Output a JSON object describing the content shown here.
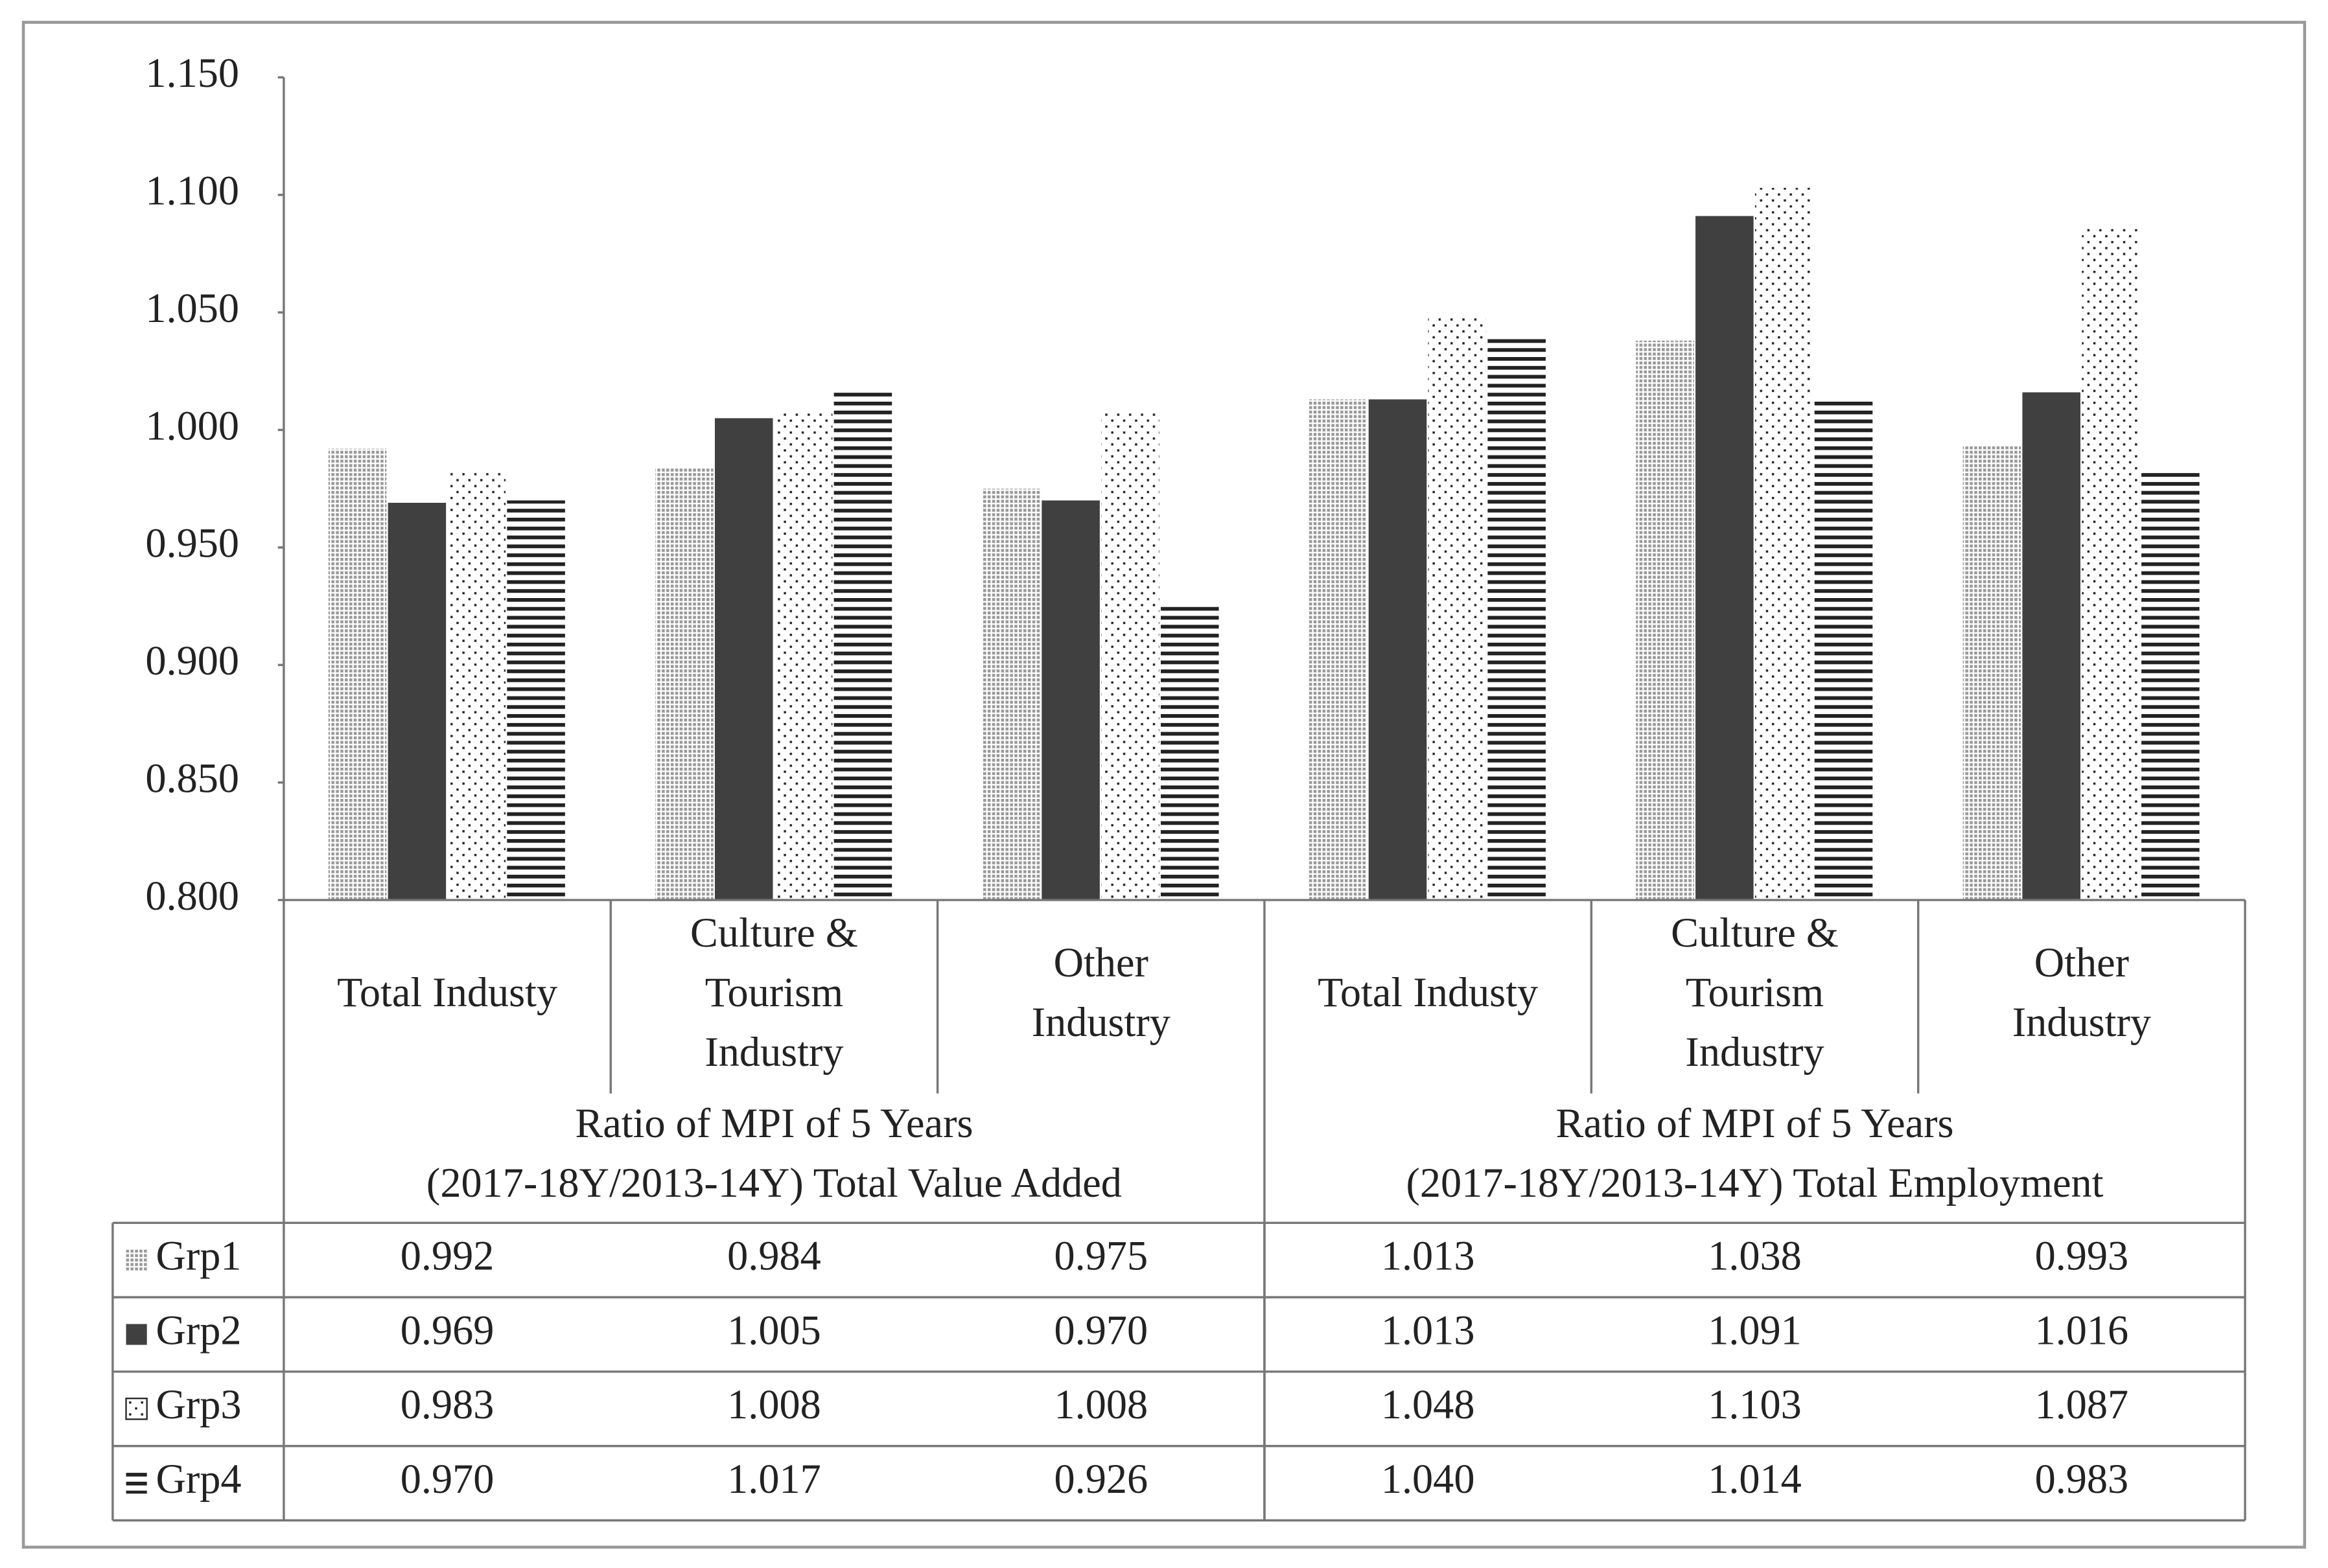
{
  "chart_data": {
    "type": "bar",
    "categories": [
      [
        "Total Industy"
      ],
      [
        "Culture &",
        "Tourism",
        "Industry"
      ],
      [
        "Other",
        "Industry"
      ],
      [
        "Total Industy"
      ],
      [
        "Culture &",
        "Tourism",
        "Industry"
      ],
      [
        "Other",
        "Industry"
      ]
    ],
    "groups": [
      [
        "Ratio of MPI of 5 Years",
        "(2017-18Y/2013-14Y) Total Value Added"
      ],
      [
        "Ratio of MPI of 5 Years",
        "(2017-18Y/2013-14Y) Total Employment"
      ]
    ],
    "series": [
      {
        "name": "Grp1",
        "color": "#999999",
        "pattern": "dense-dots",
        "values": [
          0.992,
          0.984,
          0.975,
          1.013,
          1.038,
          0.993
        ],
        "value_labels": [
          "0.992",
          "0.984",
          "0.975",
          "1.013",
          "1.038",
          "0.993"
        ]
      },
      {
        "name": "Grp2",
        "color": "#404040",
        "pattern": "solid",
        "values": [
          0.969,
          1.005,
          0.97,
          1.013,
          1.091,
          1.016
        ],
        "value_labels": [
          "0.969",
          "1.005",
          "0.970",
          "1.013",
          "1.091",
          "1.016"
        ]
      },
      {
        "name": "Grp3",
        "color": "#222222",
        "pattern": "sparse-dots",
        "values": [
          0.983,
          1.008,
          1.008,
          1.048,
          1.103,
          1.087
        ],
        "value_labels": [
          "0.983",
          "1.008",
          "1.008",
          "1.048",
          "1.103",
          "1.087"
        ]
      },
      {
        "name": "Grp4",
        "color": "#222222",
        "pattern": "horizontal-lines",
        "values": [
          0.97,
          1.017,
          0.926,
          1.04,
          1.014,
          0.983
        ],
        "value_labels": [
          "0.970",
          "1.017",
          "0.926",
          "1.040",
          "1.014",
          "0.983"
        ]
      }
    ],
    "ylim": [
      0.8,
      1.15
    ],
    "yticks": [
      {
        "value": 0.8,
        "label": "0.800"
      },
      {
        "value": 0.85,
        "label": "0.850"
      },
      {
        "value": 0.9,
        "label": "0.900"
      },
      {
        "value": 0.95,
        "label": "0.950"
      },
      {
        "value": 1.0,
        "label": "1.000"
      },
      {
        "value": 1.05,
        "label": "1.050"
      },
      {
        "value": 1.1,
        "label": "1.100"
      },
      {
        "value": 1.15,
        "label": "1.150"
      }
    ],
    "grid": false
  }
}
